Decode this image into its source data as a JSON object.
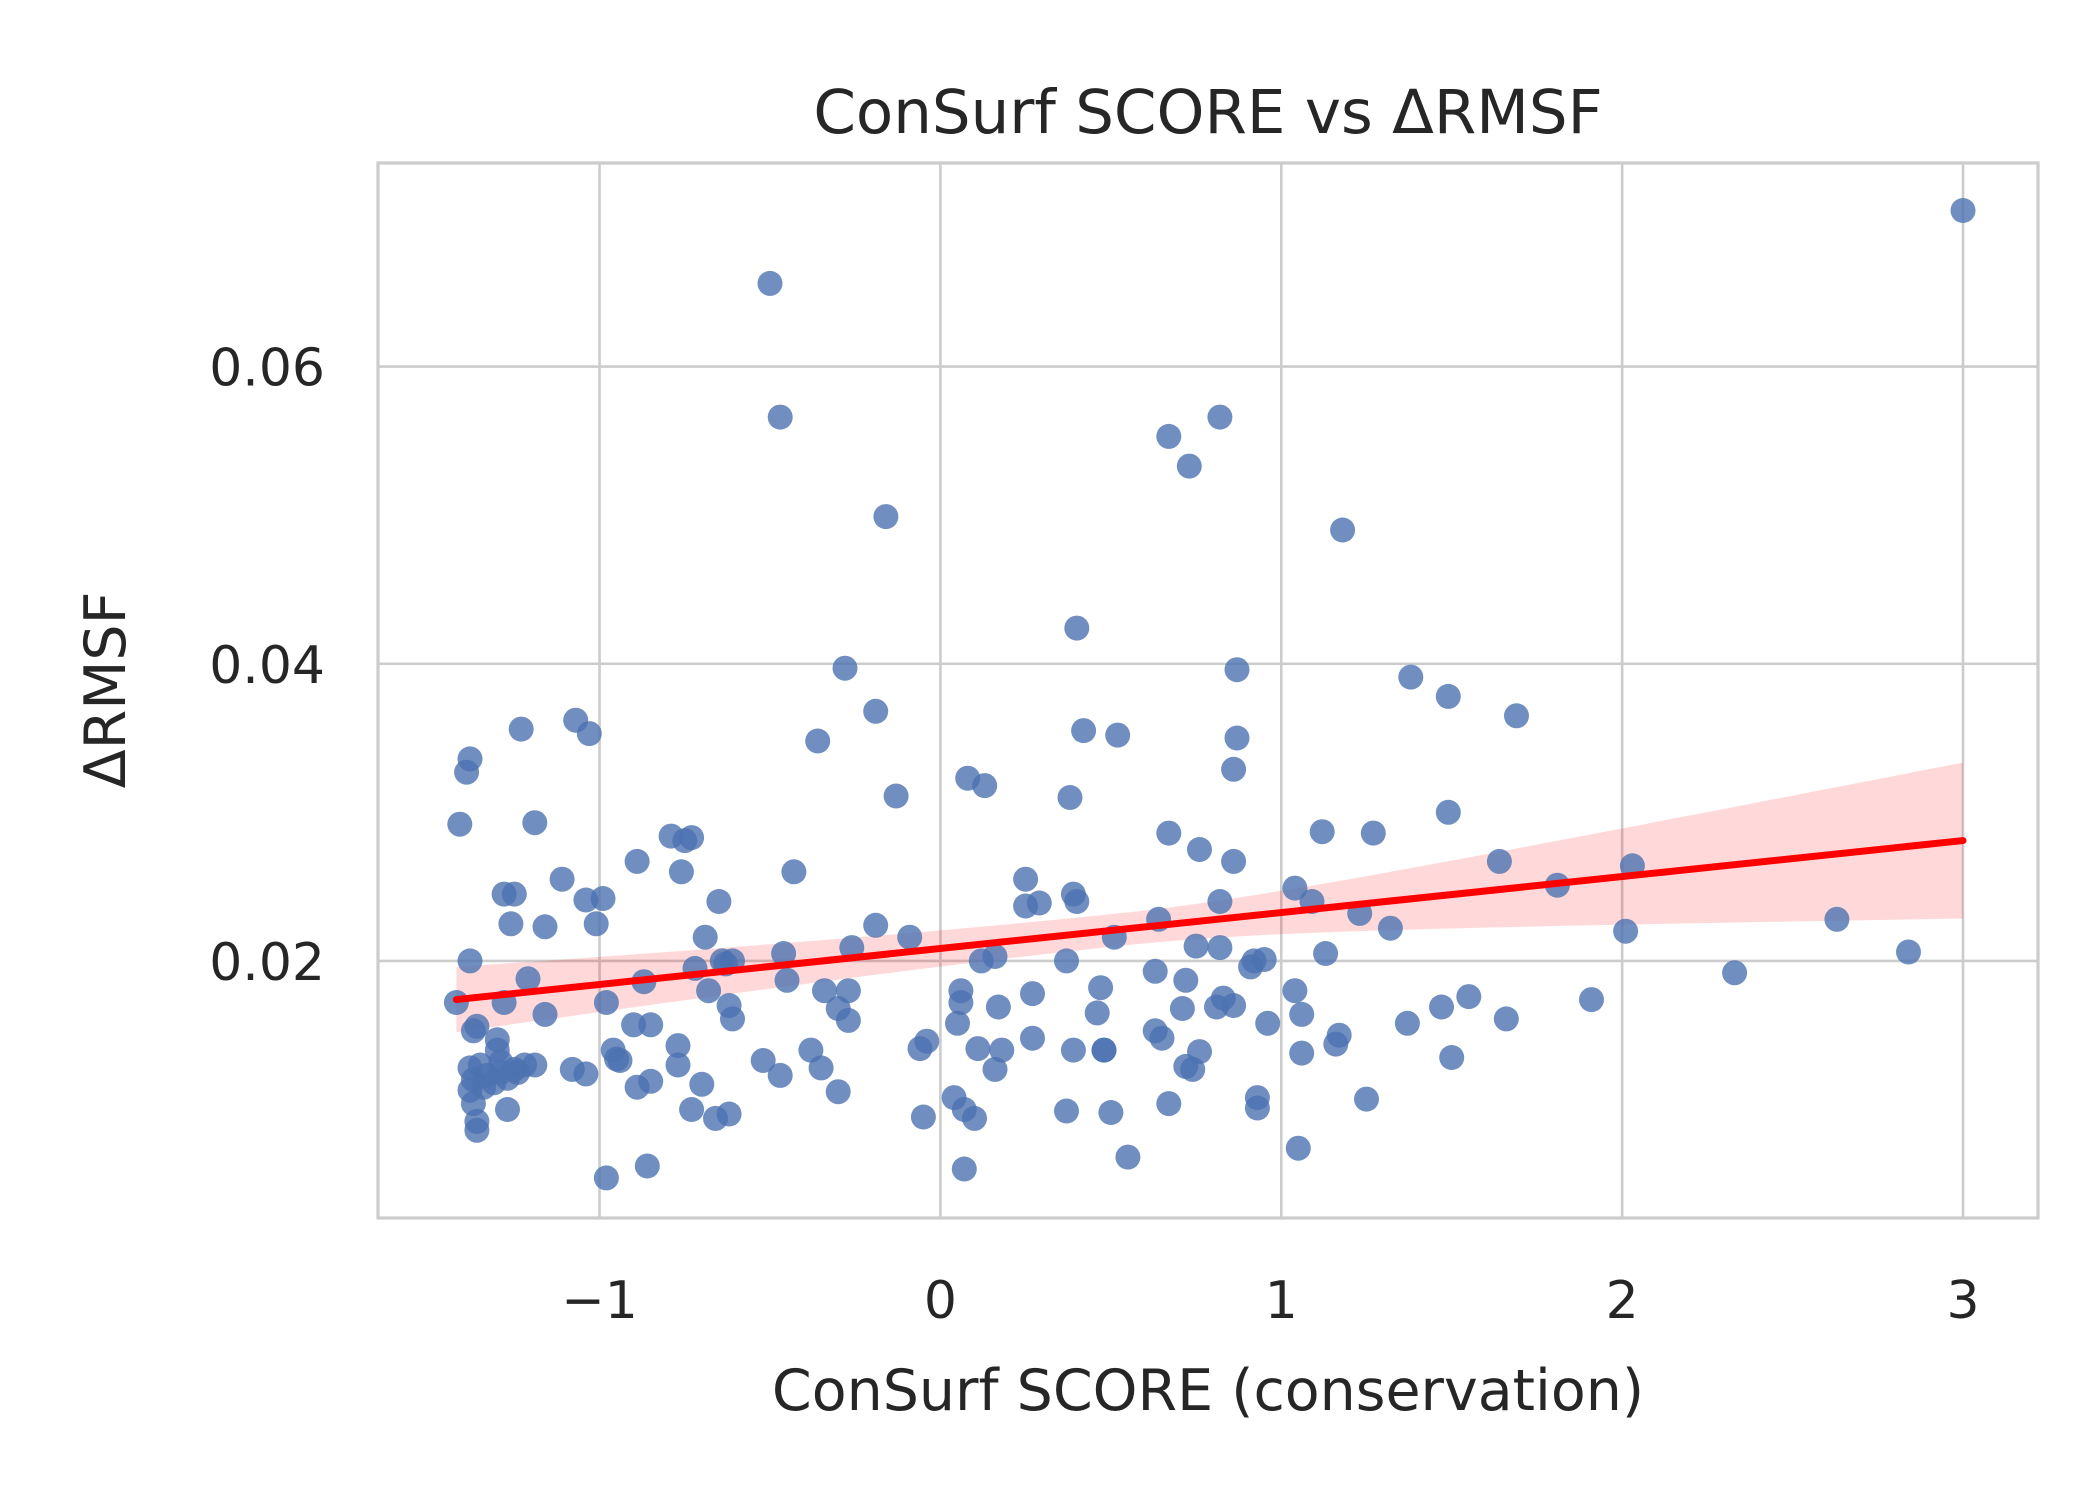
{
  "chart_data": {
    "type": "scatter",
    "title": "ConSurf SCORE vs ΔRMSF",
    "xlabel": "ConSurf SCORE (conservation)",
    "ylabel": "ΔRMSF",
    "xlim": [
      -1.65,
      3.22
    ],
    "ylim": [
      0.0027,
      0.0737
    ],
    "xticks": [
      -1,
      0,
      1,
      2,
      3
    ],
    "xtick_labels": [
      "−1",
      "0",
      "1",
      "2",
      "3"
    ],
    "yticks": [
      0.02,
      0.04,
      0.06
    ],
    "ytick_labels": [
      "0.02",
      "0.04",
      "0.06"
    ],
    "grid": true,
    "colors": {
      "points": "#4c72b0",
      "regression": "#ff0000",
      "grid": "#cccccc"
    },
    "regression": {
      "x_range": [
        -1.42,
        3.0
      ],
      "y_start": 0.0174,
      "y_end": 0.0281,
      "ci_lower_end": 0.0227,
      "ci_upper_end": 0.0332,
      "ci_lower_start": 0.0152,
      "ci_upper_start": 0.0196
    },
    "points": [
      {
        "x": -1.42,
        "y": 0.0172
      },
      {
        "x": -1.41,
        "y": 0.0292
      },
      {
        "x": -1.39,
        "y": 0.0327
      },
      {
        "x": -1.38,
        "y": 0.0336
      },
      {
        "x": -1.38,
        "y": 0.02
      },
      {
        "x": -1.37,
        "y": 0.0153
      },
      {
        "x": -1.36,
        "y": 0.0156
      },
      {
        "x": -1.38,
        "y": 0.0128
      },
      {
        "x": -1.37,
        "y": 0.012
      },
      {
        "x": -1.38,
        "y": 0.0113
      },
      {
        "x": -1.37,
        "y": 0.0104
      },
      {
        "x": -1.36,
        "y": 0.0092
      },
      {
        "x": -1.36,
        "y": 0.0086
      },
      {
        "x": -1.35,
        "y": 0.013
      },
      {
        "x": -1.34,
        "y": 0.0115
      },
      {
        "x": -1.33,
        "y": 0.0123
      },
      {
        "x": -1.31,
        "y": 0.0118
      },
      {
        "x": -1.3,
        "y": 0.0147
      },
      {
        "x": -1.3,
        "y": 0.014
      },
      {
        "x": -1.29,
        "y": 0.0132
      },
      {
        "x": -1.29,
        "y": 0.0125
      },
      {
        "x": -1.28,
        "y": 0.0172
      },
      {
        "x": -1.28,
        "y": 0.0245
      },
      {
        "x": -1.27,
        "y": 0.0121
      },
      {
        "x": -1.27,
        "y": 0.01
      },
      {
        "x": -1.26,
        "y": 0.0225
      },
      {
        "x": -1.25,
        "y": 0.0245
      },
      {
        "x": -1.25,
        "y": 0.0127
      },
      {
        "x": -1.24,
        "y": 0.0125
      },
      {
        "x": -1.23,
        "y": 0.0356
      },
      {
        "x": -1.22,
        "y": 0.013
      },
      {
        "x": -1.21,
        "y": 0.0188
      },
      {
        "x": -1.19,
        "y": 0.013
      },
      {
        "x": -1.19,
        "y": 0.0293
      },
      {
        "x": -1.16,
        "y": 0.0223
      },
      {
        "x": -1.16,
        "y": 0.0164
      },
      {
        "x": -1.11,
        "y": 0.0255
      },
      {
        "x": -1.08,
        "y": 0.0127
      },
      {
        "x": -1.07,
        "y": 0.0362
      },
      {
        "x": -1.04,
        "y": 0.0124
      },
      {
        "x": -1.04,
        "y": 0.0241
      },
      {
        "x": -1.03,
        "y": 0.0353
      },
      {
        "x": -1.01,
        "y": 0.0225
      },
      {
        "x": -0.99,
        "y": 0.0242
      },
      {
        "x": -0.98,
        "y": 0.0172
      },
      {
        "x": -0.98,
        "y": 0.0054
      },
      {
        "x": -0.96,
        "y": 0.014
      },
      {
        "x": -0.95,
        "y": 0.0134
      },
      {
        "x": -0.94,
        "y": 0.0133
      },
      {
        "x": -0.9,
        "y": 0.0157
      },
      {
        "x": -0.89,
        "y": 0.0115
      },
      {
        "x": -0.89,
        "y": 0.0267
      },
      {
        "x": -0.87,
        "y": 0.0186
      },
      {
        "x": -0.86,
        "y": 0.0062
      },
      {
        "x": -0.85,
        "y": 0.0157
      },
      {
        "x": -0.85,
        "y": 0.0119
      },
      {
        "x": -0.79,
        "y": 0.0284
      },
      {
        "x": -0.77,
        "y": 0.0143
      },
      {
        "x": -0.77,
        "y": 0.013
      },
      {
        "x": -0.76,
        "y": 0.026
      },
      {
        "x": -0.75,
        "y": 0.0281
      },
      {
        "x": -0.73,
        "y": 0.0283
      },
      {
        "x": -0.73,
        "y": 0.01
      },
      {
        "x": -0.72,
        "y": 0.0195
      },
      {
        "x": -0.7,
        "y": 0.0117
      },
      {
        "x": -0.69,
        "y": 0.0216
      },
      {
        "x": -0.68,
        "y": 0.018
      },
      {
        "x": -0.66,
        "y": 0.0094
      },
      {
        "x": -0.65,
        "y": 0.024
      },
      {
        "x": -0.64,
        "y": 0.02
      },
      {
        "x": -0.63,
        "y": 0.0198
      },
      {
        "x": -0.62,
        "y": 0.0097
      },
      {
        "x": -0.62,
        "y": 0.017
      },
      {
        "x": -0.61,
        "y": 0.0161
      },
      {
        "x": -0.61,
        "y": 0.02
      },
      {
        "x": -0.52,
        "y": 0.0133
      },
      {
        "x": -0.5,
        "y": 0.0656
      },
      {
        "x": -0.47,
        "y": 0.0566
      },
      {
        "x": -0.47,
        "y": 0.0123
      },
      {
        "x": -0.46,
        "y": 0.0205
      },
      {
        "x": -0.45,
        "y": 0.0187
      },
      {
        "x": -0.43,
        "y": 0.026
      },
      {
        "x": -0.38,
        "y": 0.014
      },
      {
        "x": -0.36,
        "y": 0.0348
      },
      {
        "x": -0.35,
        "y": 0.0128
      },
      {
        "x": -0.34,
        "y": 0.018
      },
      {
        "x": -0.3,
        "y": 0.0112
      },
      {
        "x": -0.3,
        "y": 0.0168
      },
      {
        "x": -0.28,
        "y": 0.0397
      },
      {
        "x": -0.27,
        "y": 0.018
      },
      {
        "x": -0.27,
        "y": 0.016
      },
      {
        "x": -0.26,
        "y": 0.0209
      },
      {
        "x": -0.19,
        "y": 0.0224
      },
      {
        "x": -0.19,
        "y": 0.0368
      },
      {
        "x": -0.16,
        "y": 0.0499
      },
      {
        "x": -0.13,
        "y": 0.0311
      },
      {
        "x": -0.09,
        "y": 0.0216
      },
      {
        "x": -0.06,
        "y": 0.0141
      },
      {
        "x": -0.05,
        "y": 0.0095
      },
      {
        "x": -0.04,
        "y": 0.0146
      },
      {
        "x": 0.04,
        "y": 0.0108
      },
      {
        "x": 0.05,
        "y": 0.0158
      },
      {
        "x": 0.06,
        "y": 0.0172
      },
      {
        "x": 0.06,
        "y": 0.018
      },
      {
        "x": 0.07,
        "y": 0.006
      },
      {
        "x": 0.07,
        "y": 0.01
      },
      {
        "x": 0.08,
        "y": 0.0323
      },
      {
        "x": 0.1,
        "y": 0.0094
      },
      {
        "x": 0.11,
        "y": 0.0141
      },
      {
        "x": 0.12,
        "y": 0.02
      },
      {
        "x": 0.13,
        "y": 0.0318
      },
      {
        "x": 0.16,
        "y": 0.0203
      },
      {
        "x": 0.16,
        "y": 0.0127
      },
      {
        "x": 0.17,
        "y": 0.0169
      },
      {
        "x": 0.18,
        "y": 0.014
      },
      {
        "x": 0.25,
        "y": 0.0255
      },
      {
        "x": 0.25,
        "y": 0.0237
      },
      {
        "x": 0.27,
        "y": 0.0178
      },
      {
        "x": 0.27,
        "y": 0.0148
      },
      {
        "x": 0.29,
        "y": 0.0239
      },
      {
        "x": 0.37,
        "y": 0.02
      },
      {
        "x": 0.37,
        "y": 0.0099
      },
      {
        "x": 0.38,
        "y": 0.031
      },
      {
        "x": 0.39,
        "y": 0.0245
      },
      {
        "x": 0.39,
        "y": 0.014
      },
      {
        "x": 0.4,
        "y": 0.0424
      },
      {
        "x": 0.4,
        "y": 0.024
      },
      {
        "x": 0.42,
        "y": 0.0355
      },
      {
        "x": 0.46,
        "y": 0.0165
      },
      {
        "x": 0.47,
        "y": 0.0182
      },
      {
        "x": 0.48,
        "y": 0.014
      },
      {
        "x": 0.48,
        "y": 0.014
      },
      {
        "x": 0.5,
        "y": 0.0098
      },
      {
        "x": 0.51,
        "y": 0.0216
      },
      {
        "x": 0.52,
        "y": 0.0352
      },
      {
        "x": 0.55,
        "y": 0.0068
      },
      {
        "x": 0.63,
        "y": 0.0193
      },
      {
        "x": 0.63,
        "y": 0.0153
      },
      {
        "x": 0.64,
        "y": 0.0228
      },
      {
        "x": 0.65,
        "y": 0.0148
      },
      {
        "x": 0.67,
        "y": 0.0553
      },
      {
        "x": 0.67,
        "y": 0.0286
      },
      {
        "x": 0.67,
        "y": 0.0104
      },
      {
        "x": 0.71,
        "y": 0.0168
      },
      {
        "x": 0.72,
        "y": 0.0129
      },
      {
        "x": 0.72,
        "y": 0.0187
      },
      {
        "x": 0.73,
        "y": 0.0533
      },
      {
        "x": 0.74,
        "y": 0.0127
      },
      {
        "x": 0.75,
        "y": 0.021
      },
      {
        "x": 0.76,
        "y": 0.0139
      },
      {
        "x": 0.76,
        "y": 0.0275
      },
      {
        "x": 0.81,
        "y": 0.0169
      },
      {
        "x": 0.82,
        "y": 0.0566
      },
      {
        "x": 0.82,
        "y": 0.024
      },
      {
        "x": 0.82,
        "y": 0.0209
      },
      {
        "x": 0.83,
        "y": 0.0175
      },
      {
        "x": 0.86,
        "y": 0.0267
      },
      {
        "x": 0.86,
        "y": 0.0329
      },
      {
        "x": 0.86,
        "y": 0.017
      },
      {
        "x": 0.87,
        "y": 0.0396
      },
      {
        "x": 0.87,
        "y": 0.035
      },
      {
        "x": 0.91,
        "y": 0.0196
      },
      {
        "x": 0.92,
        "y": 0.02
      },
      {
        "x": 0.93,
        "y": 0.0108
      },
      {
        "x": 0.93,
        "y": 0.0101
      },
      {
        "x": 0.95,
        "y": 0.0201
      },
      {
        "x": 0.96,
        "y": 0.0158
      },
      {
        "x": 1.04,
        "y": 0.018
      },
      {
        "x": 1.04,
        "y": 0.0249
      },
      {
        "x": 1.05,
        "y": 0.0074
      },
      {
        "x": 1.06,
        "y": 0.0164
      },
      {
        "x": 1.06,
        "y": 0.0138
      },
      {
        "x": 1.09,
        "y": 0.024
      },
      {
        "x": 1.12,
        "y": 0.0287
      },
      {
        "x": 1.13,
        "y": 0.0205
      },
      {
        "x": 1.16,
        "y": 0.0144
      },
      {
        "x": 1.17,
        "y": 0.015
      },
      {
        "x": 1.18,
        "y": 0.049
      },
      {
        "x": 1.23,
        "y": 0.0232
      },
      {
        "x": 1.25,
        "y": 0.0107
      },
      {
        "x": 1.27,
        "y": 0.0286
      },
      {
        "x": 1.32,
        "y": 0.0222
      },
      {
        "x": 1.37,
        "y": 0.0158
      },
      {
        "x": 1.38,
        "y": 0.0391
      },
      {
        "x": 1.47,
        "y": 0.0169
      },
      {
        "x": 1.49,
        "y": 0.0378
      },
      {
        "x": 1.49,
        "y": 0.03
      },
      {
        "x": 1.5,
        "y": 0.0135
      },
      {
        "x": 1.55,
        "y": 0.0176
      },
      {
        "x": 1.64,
        "y": 0.0267
      },
      {
        "x": 1.66,
        "y": 0.0161
      },
      {
        "x": 1.69,
        "y": 0.0365
      },
      {
        "x": 1.81,
        "y": 0.0251
      },
      {
        "x": 1.91,
        "y": 0.0174
      },
      {
        "x": 2.01,
        "y": 0.022
      },
      {
        "x": 2.03,
        "y": 0.0264
      },
      {
        "x": 2.33,
        "y": 0.0192
      },
      {
        "x": 2.63,
        "y": 0.0228
      },
      {
        "x": 2.84,
        "y": 0.0206
      },
      {
        "x": 3.0,
        "y": 0.0705
      }
    ]
  }
}
